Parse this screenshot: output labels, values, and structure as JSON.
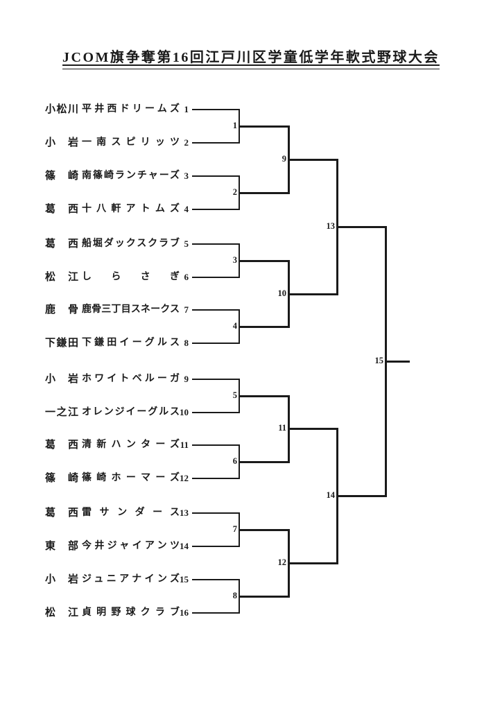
{
  "page": {
    "paper_color": "#ffffff",
    "ink_color": "#1a1a1a"
  },
  "title": "JCOM旗争奪第16回江戸川区学童低学年軟式野球大会",
  "teams": [
    {
      "area": "小松川",
      "name": "平井西ドリームズ",
      "seed": "1"
    },
    {
      "area": "小岩",
      "name": "一南スピリッツ",
      "seed": "2"
    },
    {
      "area": "篠崎",
      "name": "南篠崎ランチャーズ",
      "seed": "3"
    },
    {
      "area": "葛西",
      "name": "十八軒アトムズ",
      "seed": "4"
    },
    {
      "area": "葛西",
      "name": "船堀ダックスクラブ",
      "seed": "5"
    },
    {
      "area": "松江",
      "name": "しらさぎ",
      "seed": "6"
    },
    {
      "area": "鹿骨",
      "name": "鹿骨三丁目スネークス",
      "seed": "7"
    },
    {
      "area": "下鎌田",
      "name": "下鎌田イーグルス",
      "seed": "8"
    },
    {
      "area": "小岩",
      "name": "ホワイトベルーガ",
      "seed": "9"
    },
    {
      "area": "一之江",
      "name": "オレンジイーグルス",
      "seed": "10"
    },
    {
      "area": "葛西",
      "name": "清新ハンターズ",
      "seed": "11"
    },
    {
      "area": "篠崎",
      "name": "篠崎ホーマーズ",
      "seed": "12"
    },
    {
      "area": "葛西",
      "name": "雷サンダース",
      "seed": "13"
    },
    {
      "area": "東部",
      "name": "今井ジャイアンツ",
      "seed": "14"
    },
    {
      "area": "小岩",
      "name": "ジュニアナインズ",
      "seed": "15"
    },
    {
      "area": "松江",
      "name": "貞明野球クラブ",
      "seed": "16"
    }
  ],
  "match_labels": [
    "1",
    "2",
    "3",
    "4",
    "5",
    "6",
    "7",
    "8",
    "9",
    "10",
    "11",
    "12",
    "13",
    "14",
    "15"
  ]
}
